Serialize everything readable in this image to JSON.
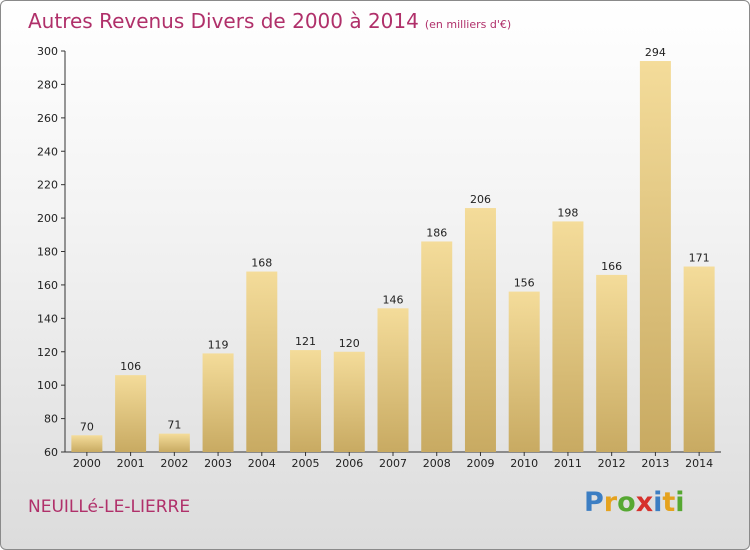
{
  "header": {
    "title": "Autres Revenus Divers de 2000 à 2014",
    "subtitle": "(en milliers d'€)"
  },
  "footer": {
    "commune": "NEUILLé-LE-LIERRE",
    "brand_letters": [
      {
        "char": "P",
        "color": "#3c7ec3"
      },
      {
        "char": "r",
        "color": "#e5a21e"
      },
      {
        "char": "o",
        "color": "#56a832"
      },
      {
        "char": "x",
        "color": "#d6312c"
      },
      {
        "char": "i",
        "color": "#3c7ec3"
      },
      {
        "char": "t",
        "color": "#e5a21e"
      },
      {
        "char": "i",
        "color": "#56a832"
      }
    ]
  },
  "colors": {
    "title": "#b0306a",
    "bar_light": "#f4dc9a",
    "bar_dark": "#c8aa62"
  },
  "chart_data": {
    "type": "bar",
    "title": "Autres Revenus Divers de 2000 à 2014",
    "subtitle": "(en milliers d'€)",
    "categories": [
      "2000",
      "2001",
      "2002",
      "2003",
      "2004",
      "2005",
      "2006",
      "2007",
      "2008",
      "2009",
      "2010",
      "2011",
      "2012",
      "2013",
      "2014"
    ],
    "values": [
      70,
      106,
      71,
      119,
      168,
      121,
      120,
      146,
      186,
      206,
      156,
      198,
      166,
      294,
      171
    ],
    "ylim": [
      60,
      300
    ],
    "yticks": [
      60,
      80,
      100,
      120,
      140,
      160,
      180,
      200,
      220,
      240,
      260,
      280,
      300
    ],
    "grid": false,
    "legend": "none"
  }
}
